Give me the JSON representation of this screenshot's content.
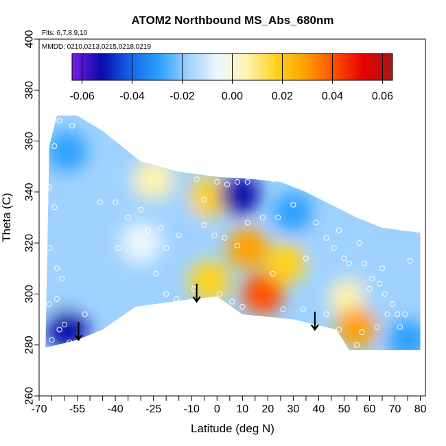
{
  "chart_data": {
    "type": "heatmap",
    "title": "ATOM2 Northbound MS_Abs_680nm",
    "annotations": [
      "Flts: 6,7,8,9,10",
      "MMDD: 0210,0213,0215,0218,0219"
    ],
    "xlabel": "Latitude (deg N)",
    "ylabel": "Theta (C)",
    "xlim": [
      -70,
      82
    ],
    "ylim": [
      260,
      400
    ],
    "x_ticks": [
      -70,
      -55,
      -40,
      -25,
      -10,
      0,
      10,
      20,
      30,
      40,
      50,
      60,
      70,
      80
    ],
    "x_tick_labels": [
      "-70",
      "-55",
      "-40",
      "-25",
      "-10",
      "0",
      "10",
      "20",
      "30",
      "40",
      "50",
      "60",
      "70",
      "80"
    ],
    "x_minor_ticks": [
      -65,
      -60,
      -50,
      -45,
      -35,
      -30,
      -20,
      -15,
      -5,
      5,
      15,
      25,
      35,
      45,
      55,
      65,
      75
    ],
    "y_ticks": [
      260,
      280,
      300,
      320,
      340,
      360,
      380,
      400
    ],
    "y_tick_labels": [
      "260",
      "280",
      "300",
      "320",
      "340",
      "360",
      "380",
      "400"
    ],
    "colorbar": {
      "range": [
        -0.064,
        0.064
      ],
      "ticks": [
        -0.06,
        -0.04,
        -0.02,
        0.0,
        0.02,
        0.04,
        0.06
      ],
      "tick_labels": [
        "-0.06",
        "-0.04",
        "-0.02",
        "0.00",
        "0.02",
        "0.04",
        "0.06"
      ],
      "colors": [
        "#7a1ee6",
        "#0a0aa8",
        "#1464e6",
        "#2da0ff",
        "#9fd2ff",
        "#eef7ff",
        "#fff4b0",
        "#ffd21e",
        "#ffa000",
        "#ff5000",
        "#e60000",
        "#a81818"
      ]
    },
    "data_region_outline": [
      [
        -67.5,
        279
      ],
      [
        -66,
        358
      ],
      [
        -63,
        370
      ],
      [
        -55,
        370
      ],
      [
        -45,
        364
      ],
      [
        -30,
        352
      ],
      [
        -15,
        348
      ],
      [
        0,
        346
      ],
      [
        15,
        345
      ],
      [
        25,
        344
      ],
      [
        35,
        340
      ],
      [
        45,
        335
      ],
      [
        55,
        330
      ],
      [
        65,
        326
      ],
      [
        80,
        324
      ],
      [
        80,
        278
      ],
      [
        52,
        278
      ],
      [
        47,
        286
      ],
      [
        30,
        290
      ],
      [
        10,
        292
      ],
      [
        0,
        299
      ],
      [
        -10,
        298
      ],
      [
        -32,
        295
      ],
      [
        -45,
        286
      ],
      [
        -55,
        282
      ],
      [
        -63,
        280
      ]
    ],
    "features": [
      {
        "lat": -59,
        "theta": 356,
        "value": -0.025
      },
      {
        "lat": -60,
        "theta": 330,
        "value": -0.02
      },
      {
        "lat": -62,
        "theta": 300,
        "value": -0.018
      },
      {
        "lat": -59,
        "theta": 286,
        "value": -0.048
      },
      {
        "lat": -40,
        "theta": 340,
        "value": -0.012
      },
      {
        "lat": -30,
        "theta": 320,
        "value": -0.004
      },
      {
        "lat": -25,
        "theta": 345,
        "value": 0.003
      },
      {
        "lat": -15,
        "theta": 330,
        "value": -0.02
      },
      {
        "lat": -3,
        "theta": 338,
        "value": 0.02
      },
      {
        "lat": 9,
        "theta": 339,
        "value": -0.05
      },
      {
        "lat": -3,
        "theta": 305,
        "value": 0.018
      },
      {
        "lat": 12,
        "theta": 318,
        "value": 0.03
      },
      {
        "lat": 18,
        "theta": 300,
        "value": 0.045
      },
      {
        "lat": 27,
        "theta": 312,
        "value": 0.016
      },
      {
        "lat": 30,
        "theta": 332,
        "value": -0.025
      },
      {
        "lat": 45,
        "theta": 322,
        "value": -0.02
      },
      {
        "lat": 52,
        "theta": 298,
        "value": 0.004
      },
      {
        "lat": 55,
        "theta": 287,
        "value": 0.03
      },
      {
        "lat": 65,
        "theta": 300,
        "value": -0.022
      },
      {
        "lat": 73,
        "theta": 308,
        "value": -0.018
      },
      {
        "lat": 75,
        "theta": 282,
        "value": -0.03
      },
      {
        "lat": 68,
        "theta": 320,
        "value": -0.012
      }
    ],
    "observations": [
      [
        -65,
        369
      ],
      [
        -62,
        368
      ],
      [
        -57,
        366
      ],
      [
        -64,
        358
      ],
      [
        -66,
        342
      ],
      [
        -64,
        334
      ],
      [
        -66,
        318
      ],
      [
        -63,
        310
      ],
      [
        -61,
        306
      ],
      [
        -63,
        298
      ],
      [
        -66,
        296
      ],
      [
        -60,
        288
      ],
      [
        -62,
        286
      ],
      [
        -65,
        282
      ],
      [
        -58,
        281
      ],
      [
        -52,
        292
      ],
      [
        -46,
        336
      ],
      [
        -40,
        336
      ],
      [
        -35,
        330
      ],
      [
        -30,
        333
      ],
      [
        -27,
        325
      ],
      [
        -22,
        326
      ],
      [
        -20,
        318
      ],
      [
        -15,
        323
      ],
      [
        -24,
        308
      ],
      [
        -20,
        300
      ],
      [
        -16,
        298
      ],
      [
        -8,
        345
      ],
      [
        -5,
        337
      ],
      [
        0,
        344
      ],
      [
        4,
        343
      ],
      [
        8,
        344
      ],
      [
        12,
        344
      ],
      [
        16,
        346
      ],
      [
        22,
        345
      ],
      [
        -5,
        327
      ],
      [
        -1,
        323
      ],
      [
        3,
        322
      ],
      [
        8,
        319
      ],
      [
        12,
        328
      ],
      [
        18,
        330
      ],
      [
        24,
        330
      ],
      [
        30,
        335
      ],
      [
        -9,
        302
      ],
      [
        1,
        300
      ],
      [
        6,
        297
      ],
      [
        10,
        295
      ],
      [
        22,
        308
      ],
      [
        26,
        294
      ],
      [
        35,
        314
      ],
      [
        39,
        328
      ],
      [
        43,
        322
      ],
      [
        46,
        318
      ],
      [
        48,
        325
      ],
      [
        50,
        314
      ],
      [
        52,
        312
      ],
      [
        56,
        320
      ],
      [
        58,
        312
      ],
      [
        60,
        302
      ],
      [
        61,
        306
      ],
      [
        64,
        304
      ],
      [
        65,
        310
      ],
      [
        66,
        300
      ],
      [
        67,
        292
      ],
      [
        69,
        296
      ],
      [
        71,
        292
      ],
      [
        74,
        292
      ],
      [
        72,
        287
      ],
      [
        63,
        287
      ],
      [
        57,
        285
      ],
      [
        55,
        280
      ],
      [
        48,
        286
      ],
      [
        80,
        277
      ],
      [
        76,
        313
      ],
      [
        43,
        292
      ],
      [
        34,
        294
      ],
      [
        -39,
        318
      ]
    ],
    "arrows": [
      {
        "lat": -54.5,
        "theta_top": 289,
        "theta_bottom": 282
      },
      {
        "lat": -8,
        "theta_top": 304,
        "theta_bottom": 297
      },
      {
        "lat": 38.5,
        "theta_top": 293,
        "theta_bottom": 286
      }
    ]
  }
}
